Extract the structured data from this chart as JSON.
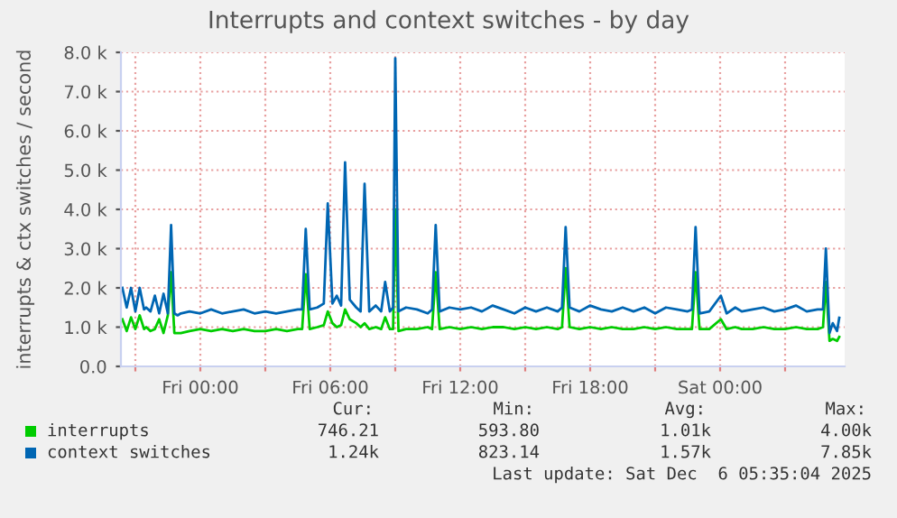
{
  "chart_data": {
    "type": "line",
    "title": "Interrupts and context switches - by day",
    "ylabel": "interrupts & ctx switches / second",
    "x": [
      "2025-12-04T20:24",
      "2025-12-04T20:36",
      "2025-12-04T20:48",
      "2025-12-04T21:00",
      "2025-12-04T21:12",
      "2025-12-04T21:24",
      "2025-12-04T21:30",
      "2025-12-04T21:42",
      "2025-12-04T21:54",
      "2025-12-04T22:06",
      "2025-12-04T22:18",
      "2025-12-04T22:30",
      "2025-12-04T22:39",
      "2025-12-04T22:48",
      "2025-12-04T22:57",
      "2025-12-04T23:06",
      "2025-12-04T23:30",
      "2025-12-05T00:00",
      "2025-12-05T00:30",
      "2025-12-05T01:00",
      "2025-12-05T01:30",
      "2025-12-05T02:00",
      "2025-12-05T02:30",
      "2025-12-05T03:00",
      "2025-12-05T03:30",
      "2025-12-05T04:00",
      "2025-12-05T04:30",
      "2025-12-05T04:42",
      "2025-12-05T04:52",
      "2025-12-05T05:03",
      "2025-12-05T05:24",
      "2025-12-05T05:42",
      "2025-12-05T05:53",
      "2025-12-05T06:06",
      "2025-12-05T06:18",
      "2025-12-05T06:30",
      "2025-12-05T06:41",
      "2025-12-05T06:54",
      "2025-12-05T07:12",
      "2025-12-05T07:24",
      "2025-12-05T07:35",
      "2025-12-05T07:48",
      "2025-12-05T08:06",
      "2025-12-05T08:21",
      "2025-12-05T08:32",
      "2025-12-05T08:45",
      "2025-12-05T08:54",
      "2025-12-05T09:00",
      "2025-12-05T09:09",
      "2025-12-05T09:30",
      "2025-12-05T10:00",
      "2025-12-05T10:30",
      "2025-12-05T10:42",
      "2025-12-05T10:52",
      "2025-12-05T11:03",
      "2025-12-05T11:30",
      "2025-12-05T12:00",
      "2025-12-05T12:30",
      "2025-12-05T13:00",
      "2025-12-05T13:30",
      "2025-12-05T14:00",
      "2025-12-05T14:30",
      "2025-12-05T15:00",
      "2025-12-05T15:30",
      "2025-12-05T16:00",
      "2025-12-05T16:30",
      "2025-12-05T16:42",
      "2025-12-05T16:52",
      "2025-12-05T17:03",
      "2025-12-05T17:30",
      "2025-12-05T18:00",
      "2025-12-05T18:30",
      "2025-12-05T19:00",
      "2025-12-05T19:30",
      "2025-12-05T20:00",
      "2025-12-05T20:30",
      "2025-12-05T21:00",
      "2025-12-05T21:30",
      "2025-12-05T22:00",
      "2025-12-05T22:30",
      "2025-12-05T22:42",
      "2025-12-05T22:52",
      "2025-12-05T23:03",
      "2025-12-05T23:30",
      "2025-12-06T00:02",
      "2025-12-06T00:18",
      "2025-12-06T00:42",
      "2025-12-06T01:00",
      "2025-12-06T01:30",
      "2025-12-06T02:00",
      "2025-12-06T02:30",
      "2025-12-06T03:00",
      "2025-12-06T03:30",
      "2025-12-06T04:00",
      "2025-12-06T04:30",
      "2025-12-06T04:45",
      "2025-12-06T04:53",
      "2025-12-06T05:03",
      "2025-12-06T05:12",
      "2025-12-06T05:24",
      "2025-12-06T05:30"
    ],
    "series": [
      {
        "name": "interrupts",
        "color": "#00cc00",
        "values": [
          1200,
          900,
          1250,
          950,
          1300,
          950,
          1000,
          900,
          950,
          1200,
          850,
          1300,
          2400,
          850,
          850,
          850,
          900,
          950,
          900,
          950,
          900,
          950,
          900,
          900,
          950,
          900,
          950,
          950,
          2350,
          950,
          1000,
          1050,
          1400,
          1100,
          1000,
          1050,
          1450,
          1200,
          1100,
          1000,
          1100,
          950,
          1000,
          950,
          1250,
          950,
          950,
          4000,
          900,
          950,
          950,
          1000,
          950,
          2400,
          950,
          1000,
          950,
          1000,
          950,
          1000,
          1000,
          950,
          1000,
          950,
          1000,
          950,
          1000,
          2500,
          1000,
          950,
          1000,
          950,
          1000,
          950,
          950,
          1000,
          950,
          1000,
          950,
          950,
          950,
          2400,
          950,
          950,
          1200,
          950,
          1000,
          950,
          950,
          1000,
          950,
          950,
          1000,
          950,
          950,
          1000,
          2150,
          650,
          700,
          650,
          750
        ]
      },
      {
        "name": "context switches",
        "color": "#0066b3",
        "values": [
          2000,
          1500,
          2000,
          1400,
          2000,
          1450,
          1500,
          1400,
          1800,
          1350,
          1850,
          1350,
          3600,
          1350,
          1300,
          1350,
          1400,
          1350,
          1450,
          1350,
          1400,
          1450,
          1350,
          1400,
          1350,
          1400,
          1450,
          1450,
          3500,
          1450,
          1500,
          1600,
          4150,
          1600,
          1800,
          1550,
          5200,
          1700,
          1500,
          1400,
          4650,
          1400,
          1550,
          1400,
          2150,
          1400,
          1500,
          7850,
          1400,
          1500,
          1450,
          1350,
          1450,
          3600,
          1400,
          1500,
          1450,
          1500,
          1400,
          1550,
          1450,
          1350,
          1500,
          1400,
          1500,
          1400,
          1500,
          3550,
          1500,
          1400,
          1550,
          1450,
          1400,
          1500,
          1400,
          1500,
          1350,
          1500,
          1450,
          1400,
          1450,
          3550,
          1350,
          1400,
          1800,
          1350,
          1500,
          1400,
          1450,
          1500,
          1400,
          1450,
          1550,
          1400,
          1450,
          1450,
          3000,
          850,
          1100,
          900,
          1240
        ]
      }
    ],
    "xlim": [
      "2025-12-04T20:20",
      "2025-12-06T05:45"
    ],
    "xticks": [
      {
        "value": "2025-12-04T21:00",
        "label": null
      },
      {
        "value": "2025-12-05T00:00",
        "label": "Fri 00:00"
      },
      {
        "value": "2025-12-05T03:00",
        "label": null
      },
      {
        "value": "2025-12-05T06:00",
        "label": "Fri 06:00"
      },
      {
        "value": "2025-12-05T09:00",
        "label": null
      },
      {
        "value": "2025-12-05T12:00",
        "label": "Fri 12:00"
      },
      {
        "value": "2025-12-05T15:00",
        "label": null
      },
      {
        "value": "2025-12-05T18:00",
        "label": "Fri 18:00"
      },
      {
        "value": "2025-12-05T21:00",
        "label": null
      },
      {
        "value": "2025-12-06T00:00",
        "label": "Sat 00:00"
      },
      {
        "value": "2025-12-06T03:00",
        "label": null
      }
    ],
    "ylim": [
      0,
      8000
    ],
    "yticks": [
      {
        "value": 0,
        "label": "0.0"
      },
      {
        "value": 1000,
        "label": "1.0 k"
      },
      {
        "value": 2000,
        "label": "2.0 k"
      },
      {
        "value": 3000,
        "label": "3.0 k"
      },
      {
        "value": 4000,
        "label": "4.0 k"
      },
      {
        "value": 5000,
        "label": "5.0 k"
      },
      {
        "value": 6000,
        "label": "6.0 k"
      },
      {
        "value": 7000,
        "label": "7.0 k"
      },
      {
        "value": 8000,
        "label": "8.0 k"
      }
    ],
    "grid": true,
    "legend": "bottom",
    "annotations": [
      "Cur:",
      "Min:",
      "Avg:",
      "Max:",
      "746.21",
      "593.80",
      "1.01k",
      "4.00k",
      "1.24k",
      "823.14",
      "1.57k",
      "7.85k",
      "Last update: Sat Dec  6 05:35:04 2025"
    ]
  }
}
